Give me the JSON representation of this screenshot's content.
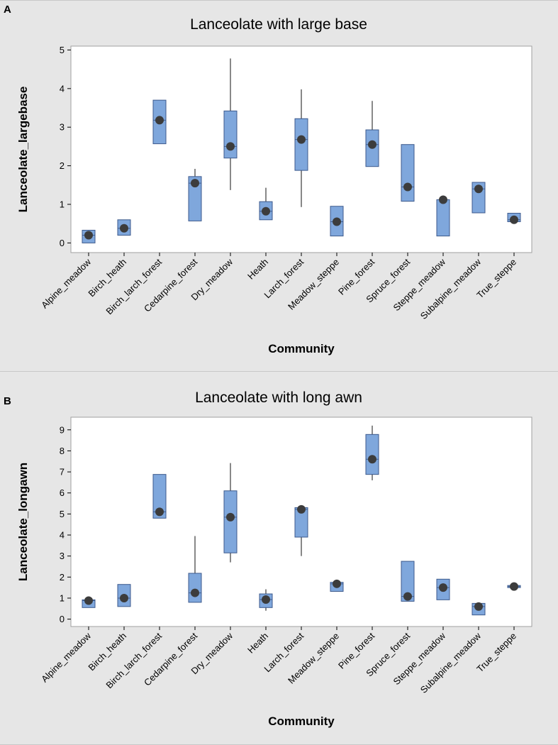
{
  "figure": {
    "panels": [
      "A",
      "B"
    ]
  },
  "chart_data": [
    {
      "type": "boxplot",
      "panel_label": "A",
      "title": "Lanceolate with large base",
      "xlabel": "Community",
      "ylabel": "Lanceolate_largebase",
      "ylim": [
        -0.25,
        5.1
      ],
      "yticks": [
        0,
        1,
        2,
        3,
        4,
        5
      ],
      "colors": {
        "box_fill": "#7fa7dc",
        "box_stroke": "#3d5a8c",
        "mean_marker": "#3c3c3c",
        "plot_bg": "#ffffff"
      },
      "categories": [
        "Alpine_meadow",
        "Birch_heath",
        "Birch_larch_forest",
        "Cedarpine_forest",
        "Dry_meadow",
        "Heath",
        "Larch_forest",
        "Meadow_steppe",
        "Pine_forest",
        "Spruce_forest",
        "Steppe_meadow",
        "Subalpine_meadow",
        "True_steppe"
      ],
      "boxes": [
        {
          "whisker_low": 0.0,
          "q1": 0.0,
          "median": 0.2,
          "q3": 0.33,
          "whisker_high": 0.33,
          "mean": 0.2
        },
        {
          "whisker_low": 0.2,
          "q1": 0.2,
          "median": 0.38,
          "q3": 0.6,
          "whisker_high": 0.6,
          "mean": 0.38
        },
        {
          "whisker_low": 2.57,
          "q1": 2.57,
          "median": 3.18,
          "q3": 3.7,
          "whisker_high": 3.7,
          "mean": 3.18
        },
        {
          "whisker_low": 0.57,
          "q1": 0.57,
          "median": 1.55,
          "q3": 1.72,
          "whisker_high": 1.92,
          "mean": 1.55
        },
        {
          "whisker_low": 1.37,
          "q1": 2.2,
          "median": 2.5,
          "q3": 3.42,
          "whisker_high": 4.78,
          "mean": 2.5
        },
        {
          "whisker_low": 0.6,
          "q1": 0.6,
          "median": 0.82,
          "q3": 1.07,
          "whisker_high": 1.43,
          "mean": 0.82
        },
        {
          "whisker_low": 0.93,
          "q1": 1.88,
          "median": 2.68,
          "q3": 3.22,
          "whisker_high": 3.98,
          "mean": 2.68
        },
        {
          "whisker_low": 0.18,
          "q1": 0.18,
          "median": 0.55,
          "q3": 0.95,
          "whisker_high": 0.95,
          "mean": 0.55
        },
        {
          "whisker_low": 1.98,
          "q1": 1.98,
          "median": 2.55,
          "q3": 2.93,
          "whisker_high": 3.68,
          "mean": 2.55
        },
        {
          "whisker_low": 1.08,
          "q1": 1.08,
          "median": 1.45,
          "q3": 2.55,
          "whisker_high": 2.55,
          "mean": 1.45
        },
        {
          "whisker_low": 0.18,
          "q1": 0.18,
          "median": 1.12,
          "q3": 1.12,
          "whisker_high": 1.12,
          "mean": 1.12
        },
        {
          "whisker_low": 0.78,
          "q1": 0.78,
          "median": 1.4,
          "q3": 1.57,
          "whisker_high": 1.57,
          "mean": 1.4
        },
        {
          "whisker_low": 0.55,
          "q1": 0.55,
          "median": 0.6,
          "q3": 0.77,
          "whisker_high": 0.77,
          "mean": 0.6
        }
      ]
    },
    {
      "type": "boxplot",
      "panel_label": "B",
      "title": "Lanceolate with long awn",
      "xlabel": "Community",
      "ylabel": "Lanceolate_longawn",
      "ylim": [
        -0.35,
        9.6
      ],
      "yticks": [
        0,
        1,
        2,
        3,
        4,
        5,
        6,
        7,
        8,
        9
      ],
      "colors": {
        "box_fill": "#7fa7dc",
        "box_stroke": "#3d5a8c",
        "mean_marker": "#3c3c3c",
        "plot_bg": "#ffffff"
      },
      "categories": [
        "Alpine_meadow",
        "Birch_heath",
        "Birch_larch_forest",
        "Cedarpine_forest",
        "Dry_meadow",
        "Heath",
        "Larch_forest",
        "Meadow_steppe",
        "Pine_forest",
        "Spruce_forest",
        "Steppe_meadow",
        "Subalpine_meadow",
        "True_steppe"
      ],
      "boxes": [
        {
          "whisker_low": 0.55,
          "q1": 0.55,
          "median": 0.88,
          "q3": 0.92,
          "whisker_high": 0.92,
          "mean": 0.88
        },
        {
          "whisker_low": 0.6,
          "q1": 0.6,
          "median": 1.0,
          "q3": 1.65,
          "whisker_high": 1.65,
          "mean": 1.0
        },
        {
          "whisker_low": 4.8,
          "q1": 4.8,
          "median": 5.1,
          "q3": 6.88,
          "whisker_high": 6.88,
          "mean": 5.1
        },
        {
          "whisker_low": 0.8,
          "q1": 0.8,
          "median": 1.25,
          "q3": 2.18,
          "whisker_high": 3.95,
          "mean": 1.25
        },
        {
          "whisker_low": 2.7,
          "q1": 3.15,
          "median": 4.85,
          "q3": 6.1,
          "whisker_high": 7.42,
          "mean": 4.85
        },
        {
          "whisker_low": 0.4,
          "q1": 0.55,
          "median": 0.93,
          "q3": 1.2,
          "whisker_high": 1.42,
          "mean": 0.93
        },
        {
          "whisker_low": 3.0,
          "q1": 3.9,
          "median": 5.22,
          "q3": 5.3,
          "whisker_high": 5.3,
          "mean": 5.22
        },
        {
          "whisker_low": 1.32,
          "q1": 1.32,
          "median": 1.68,
          "q3": 1.75,
          "whisker_high": 1.75,
          "mean": 1.68
        },
        {
          "whisker_low": 6.6,
          "q1": 6.88,
          "median": 7.6,
          "q3": 8.78,
          "whisker_high": 9.2,
          "mean": 7.6
        },
        {
          "whisker_low": 0.85,
          "q1": 0.85,
          "median": 1.08,
          "q3": 2.75,
          "whisker_high": 2.75,
          "mean": 1.08
        },
        {
          "whisker_low": 0.92,
          "q1": 0.92,
          "median": 1.5,
          "q3": 1.9,
          "whisker_high": 1.9,
          "mean": 1.5
        },
        {
          "whisker_low": 0.2,
          "q1": 0.2,
          "median": 0.6,
          "q3": 0.75,
          "whisker_high": 0.75,
          "mean": 0.6
        },
        {
          "whisker_low": 1.5,
          "q1": 1.5,
          "median": 1.55,
          "q3": 1.6,
          "whisker_high": 1.6,
          "mean": 1.55
        }
      ]
    }
  ]
}
